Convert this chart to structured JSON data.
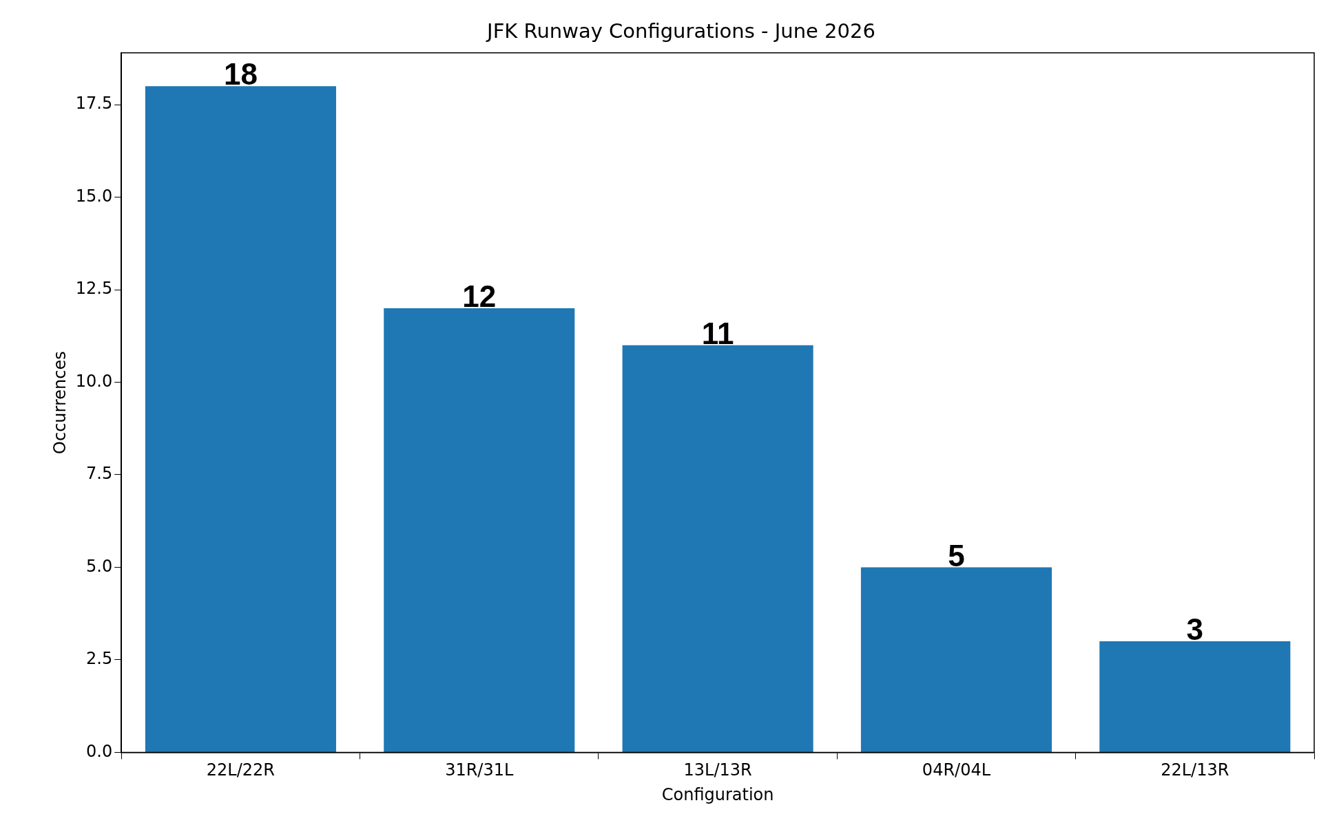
{
  "chart_data": {
    "type": "bar",
    "title": "JFK Runway Configurations - June 2026",
    "xlabel": "Configuration",
    "ylabel": "Occurrences",
    "categories": [
      "22L/22R",
      "31R/31L",
      "13L/13R",
      "04R/04L",
      "22L/13R"
    ],
    "values": [
      18,
      12,
      11,
      5,
      3
    ],
    "color": "#1f77b4",
    "ylim": [
      0,
      18.9
    ],
    "yticks": [
      {
        "value": 0,
        "label": "0.0"
      },
      2.5,
      {
        "value": 5,
        "label": "5.0"
      },
      7.5,
      {
        "value": 10,
        "label": "10.0"
      },
      12.5,
      {
        "value": 15,
        "label": "15.0"
      },
      17.5
    ],
    "grid": false,
    "data_labels": true,
    "legend": false
  }
}
